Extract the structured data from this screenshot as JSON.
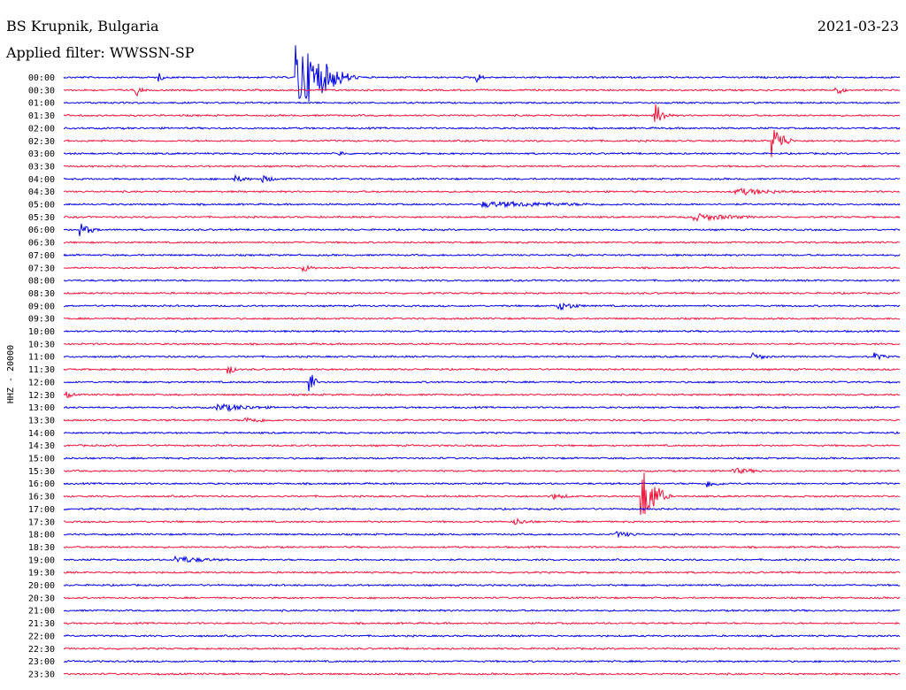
{
  "header": {
    "station": "BS Krupnik, Bulgaria",
    "filter": "Applied filter: WWSSN-SP",
    "date": "2021-03-23"
  },
  "colors": {
    "even": "#0000e6",
    "odd": "#f0143c"
  },
  "chart_data": {
    "type": "line",
    "title": "BS Krupnik, Bulgaria",
    "subtitle": "Applied filter: WWSSN-SP",
    "date": "2021-03-23",
    "ylabel": "HHZ - 20000",
    "traces": [
      "00:00",
      "00:30",
      "01:00",
      "01:30",
      "02:00",
      "02:30",
      "03:00",
      "03:30",
      "04:00",
      "04:30",
      "05:00",
      "05:30",
      "06:00",
      "06:30",
      "07:00",
      "07:30",
      "08:00",
      "08:30",
      "09:00",
      "09:30",
      "10:00",
      "10:30",
      "11:00",
      "11:30",
      "12:00",
      "12:30",
      "13:00",
      "13:30",
      "14:00",
      "14:30",
      "15:00",
      "15:30",
      "16:00",
      "16:30",
      "17:00",
      "17:30",
      "18:00",
      "18:30",
      "19:00",
      "19:30",
      "20:00",
      "20:30",
      "21:00",
      "21:30",
      "22:00",
      "22:30",
      "23:00",
      "23:30"
    ],
    "x_range_minutes": [
      0,
      30
    ],
    "events": [
      {
        "trace": "00:00",
        "minute": 8.3,
        "amplitude": 4.2,
        "duration_min": 2.5
      },
      {
        "trace": "00:00",
        "minute": 3.4,
        "amplitude": 0.5,
        "duration_min": 0.3
      },
      {
        "trace": "00:00",
        "minute": 14.8,
        "amplitude": 0.6,
        "duration_min": 0.4
      },
      {
        "trace": "00:30",
        "minute": 2.6,
        "amplitude": 0.7,
        "duration_min": 0.4
      },
      {
        "trace": "00:30",
        "minute": 27.7,
        "amplitude": 0.6,
        "duration_min": 0.5
      },
      {
        "trace": "01:30",
        "minute": 21.2,
        "amplitude": 1.5,
        "duration_min": 0.7
      },
      {
        "trace": "02:30",
        "minute": 25.4,
        "amplitude": 2.0,
        "duration_min": 0.9
      },
      {
        "trace": "03:00",
        "minute": 9.9,
        "amplitude": 0.4,
        "duration_min": 0.3
      },
      {
        "trace": "04:00",
        "minute": 6.1,
        "amplitude": 0.4,
        "duration_min": 0.8
      },
      {
        "trace": "04:00",
        "minute": 7.1,
        "amplitude": 0.4,
        "duration_min": 0.8
      },
      {
        "trace": "04:30",
        "minute": 24.1,
        "amplitude": 0.4,
        "duration_min": 2.5
      },
      {
        "trace": "05:00",
        "minute": 15.0,
        "amplitude": 0.3,
        "duration_min": 6.0
      },
      {
        "trace": "05:30",
        "minute": 22.5,
        "amplitude": 0.4,
        "duration_min": 3.0
      },
      {
        "trace": "06:00",
        "minute": 0.6,
        "amplitude": 0.7,
        "duration_min": 0.8
      },
      {
        "trace": "07:30",
        "minute": 8.6,
        "amplitude": 0.4,
        "duration_min": 0.6
      },
      {
        "trace": "09:00",
        "minute": 17.7,
        "amplitude": 0.5,
        "duration_min": 1.2
      },
      {
        "trace": "11:00",
        "minute": 24.7,
        "amplitude": 0.4,
        "duration_min": 0.8
      },
      {
        "trace": "11:00",
        "minute": 29.1,
        "amplitude": 0.4,
        "duration_min": 0.6
      },
      {
        "trace": "11:30",
        "minute": 5.9,
        "amplitude": 0.7,
        "duration_min": 0.4
      },
      {
        "trace": "12:00",
        "minute": 8.8,
        "amplitude": 1.6,
        "duration_min": 0.4
      },
      {
        "trace": "12:30",
        "minute": 0.1,
        "amplitude": 0.4,
        "duration_min": 0.4
      },
      {
        "trace": "13:00",
        "minute": 5.5,
        "amplitude": 0.4,
        "duration_min": 2.5
      },
      {
        "trace": "13:30",
        "minute": 6.5,
        "amplitude": 0.3,
        "duration_min": 1.5
      },
      {
        "trace": "15:30",
        "minute": 24.0,
        "amplitude": 0.3,
        "duration_min": 1.5
      },
      {
        "trace": "16:00",
        "minute": 23.1,
        "amplitude": 0.4,
        "duration_min": 0.8
      },
      {
        "trace": "16:30",
        "minute": 20.7,
        "amplitude": 3.6,
        "duration_min": 1.2
      },
      {
        "trace": "16:30",
        "minute": 17.5,
        "amplitude": 0.3,
        "duration_min": 1.0
      },
      {
        "trace": "17:30",
        "minute": 16.1,
        "amplitude": 0.4,
        "duration_min": 1.0
      },
      {
        "trace": "18:00",
        "minute": 19.8,
        "amplitude": 0.3,
        "duration_min": 1.2
      },
      {
        "trace": "19:00",
        "minute": 4.0,
        "amplitude": 0.4,
        "duration_min": 2.0
      }
    ]
  }
}
